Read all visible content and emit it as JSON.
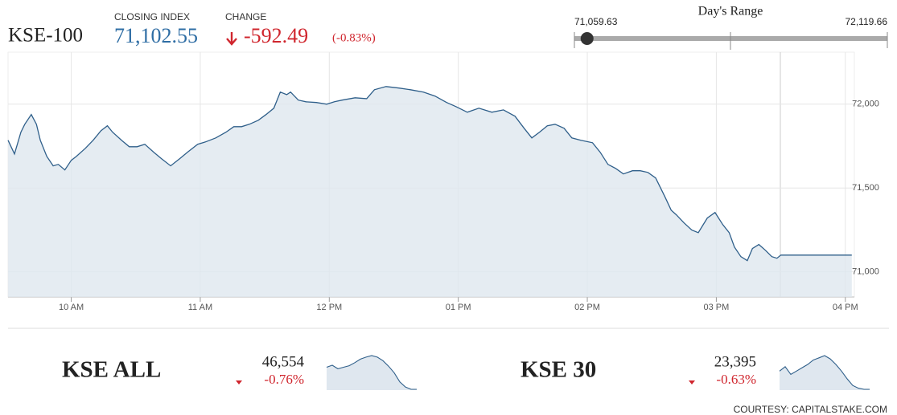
{
  "header": {
    "name": "KSE-100",
    "closing_label": "CLOSING INDEX",
    "closing": {
      "value": 71102.55,
      "label": "71,102.55"
    },
    "change_label": "CHANGE",
    "change": "-592.49",
    "change_pct": "(-0.83%)"
  },
  "day_range": {
    "title": "Day's Range",
    "low": {
      "value": 71059.63,
      "label": "71,059.63"
    },
    "high": {
      "value": 72119.66,
      "label": "72,119.66"
    }
  },
  "chart_data": [
    {
      "type": "line",
      "color": "#2f5f8a",
      "area_color": "#dfe7ef",
      "x": [
        9.51,
        9.56,
        9.61,
        9.64,
        9.69,
        9.73,
        9.76,
        9.81,
        9.86,
        9.9,
        9.95,
        10,
        10.04,
        10.11,
        10.17,
        10.23,
        10.28,
        10.32,
        10.39,
        10.45,
        10.51,
        10.57,
        10.64,
        10.7,
        10.77,
        10.84,
        10.9,
        10.98,
        11.04,
        11.12,
        11.2,
        11.26,
        11.32,
        11.38,
        11.45,
        11.51,
        11.57,
        11.62,
        11.67,
        11.7,
        11.76,
        11.82,
        11.9,
        11.98,
        12.04,
        12.1,
        12.2,
        12.29,
        12.35,
        12.44,
        12.54,
        12.63,
        12.73,
        12.82,
        12.91,
        12.98,
        13.07,
        13.16,
        13.26,
        13.35,
        13.44,
        13.51,
        13.57,
        13.63,
        13.69,
        13.75,
        13.82,
        13.88,
        13.95,
        14.04,
        14.1,
        14.16,
        14.22,
        14.28,
        14.35,
        14.41,
        14.47,
        14.53,
        14.6,
        14.65,
        14.69,
        14.75,
        14.81,
        14.86,
        14.93,
        14.99,
        15.05,
        15.1,
        15.14,
        15.19,
        15.24,
        15.28,
        15.33,
        15.38,
        15.43,
        15.47,
        15.5,
        16.05
      ],
      "values": [
        71785,
        71703,
        71833,
        71880,
        71938,
        71880,
        71785,
        71689,
        71632,
        71641,
        71608,
        71665,
        71689,
        71737,
        71785,
        71842,
        71871,
        71833,
        71785,
        71746,
        71746,
        71761,
        71713,
        71675,
        71632,
        71675,
        71713,
        71761,
        71775,
        71799,
        71833,
        71866,
        71866,
        71880,
        71904,
        71938,
        71976,
        72072,
        72057,
        72072,
        72024,
        72014,
        72010,
        72000,
        72014,
        72024,
        72038,
        72033,
        72086,
        72105,
        72096,
        72086,
        72072,
        72048,
        72010,
        71986,
        71952,
        71976,
        71952,
        71966,
        71928,
        71856,
        71799,
        71833,
        71871,
        71880,
        71856,
        71799,
        71785,
        71770,
        71713,
        71641,
        71617,
        71584,
        71603,
        71603,
        71593,
        71560,
        71450,
        71368,
        71340,
        71292,
        71249,
        71234,
        71321,
        71354,
        71282,
        71234,
        71148,
        71091,
        71067,
        71139,
        71163,
        71129,
        71091,
        71081,
        71100,
        71100
      ],
      "xlim": [
        9.51,
        16.07
      ],
      "ylim": [
        70850,
        72310
      ],
      "xticks": [
        {
          "value": 10,
          "label": "10 AM"
        },
        {
          "value": 11,
          "label": "11 AM"
        },
        {
          "value": 12,
          "label": "12 PM"
        },
        {
          "value": 13,
          "label": "01 PM"
        },
        {
          "value": 14,
          "label": "02 PM"
        },
        {
          "value": 15,
          "label": "03 PM"
        },
        {
          "value": 16,
          "label": "04 PM"
        }
      ],
      "yticks": [
        {
          "value": 71000,
          "label": "71,000"
        },
        {
          "value": 71500,
          "label": "71,500"
        },
        {
          "value": 72000,
          "label": "72,000"
        }
      ],
      "grid": true
    },
    {
      "type": "line",
      "color": "#2f5f8a",
      "area_color": "#dfe7ef",
      "values": [
        46990,
        47030,
        46960,
        46990,
        47020,
        47080,
        47150,
        47190,
        47220,
        47190,
        47120,
        47010,
        46880,
        46700,
        46600,
        46554,
        46554
      ]
    },
    {
      "type": "line",
      "color": "#2f5f8a",
      "area_color": "#dfe7ef",
      "values": [
        23560,
        23600,
        23530,
        23560,
        23590,
        23620,
        23660,
        23680,
        23700,
        23670,
        23620,
        23560,
        23490,
        23430,
        23405,
        23395,
        23395
      ]
    }
  ],
  "cards": [
    {
      "name": "KSE ALL",
      "value": "46,554",
      "change": "-0.76%"
    },
    {
      "name": "KSE 30",
      "value": "23,395",
      "change": "-0.63%"
    }
  ],
  "footer": "COURTESY: CAPITALSTAKE.COM"
}
